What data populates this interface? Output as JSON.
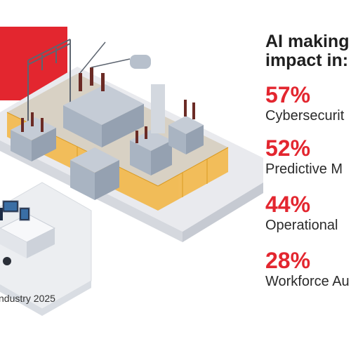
{
  "headline": {
    "line1": "AI making",
    "line2": "impact in:"
  },
  "stats": [
    {
      "percent": "57%",
      "label": "Cybersecurit"
    },
    {
      "percent": "52%",
      "label": "Predictive M"
    },
    {
      "percent": "44%",
      "label": "Operational"
    },
    {
      "percent": "28%",
      "label": "Workforce Au"
    }
  ],
  "footnote": "ndustry 2025",
  "colors": {
    "accent_red": "#e3262f",
    "text_dark": "#1f1f1f",
    "fence_yellow": "#f3b53f",
    "platform_grey": "#e9eaee",
    "equipment_grey": "#a9b4c2"
  }
}
